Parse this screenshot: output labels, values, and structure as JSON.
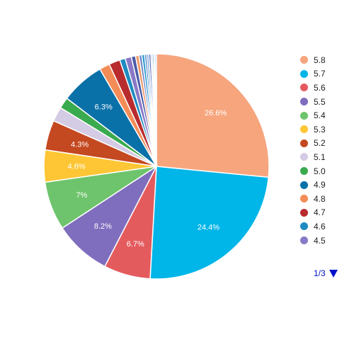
{
  "chart_data": {
    "type": "pie",
    "legend_position": "right",
    "slices": [
      {
        "label": "5.8",
        "value": 26.6,
        "display": "26.6%",
        "color": "#f6a57d"
      },
      {
        "label": "5.7",
        "value": 24.4,
        "display": "24.4%",
        "color": "#00b5e8"
      },
      {
        "label": "5.6",
        "value": 6.7,
        "display": "6.7%",
        "color": "#e45b5e"
      },
      {
        "label": "5.5",
        "value": 8.2,
        "display": "8.2%",
        "color": "#7f6dbe"
      },
      {
        "label": "5.4",
        "value": 7.0,
        "display": "7%",
        "color": "#6ec46c"
      },
      {
        "label": "5.3",
        "value": 4.6,
        "display": "4.6%",
        "color": "#fec634"
      },
      {
        "label": "5.2",
        "value": 4.3,
        "display": "4.3%",
        "color": "#c44921"
      },
      {
        "label": "5.1",
        "value": 2.1,
        "display": "",
        "color": "#d4cbe4"
      },
      {
        "label": "5.0",
        "value": 1.6,
        "display": "",
        "color": "#3aaa4e"
      },
      {
        "label": "4.9",
        "value": 6.3,
        "display": "6.3%",
        "color": "#0a70a8"
      },
      {
        "label": "4.8",
        "value": 1.5,
        "display": "",
        "color": "#f48c57"
      },
      {
        "label": "4.7",
        "value": 1.6,
        "display": "",
        "color": "#b82c2e"
      },
      {
        "label": "4.6",
        "value": 0.8,
        "display": "",
        "color": "#1e8cc0"
      },
      {
        "label": "4.5",
        "value": 0.9,
        "display": "",
        "color": "#8a79c6"
      },
      {
        "label": "",
        "value": 0.6,
        "display": "",
        "color": "#4a5ba8"
      },
      {
        "label": "",
        "value": 0.5,
        "display": "",
        "color": "#f09a6a"
      },
      {
        "label": "",
        "value": 0.4,
        "display": "",
        "color": "#6a86c6"
      },
      {
        "label": "",
        "value": 0.4,
        "display": "",
        "color": "#2a9ad0"
      },
      {
        "label": "",
        "value": 0.3,
        "display": "",
        "color": "#3f7fbf"
      },
      {
        "label": "",
        "value": 0.3,
        "display": "",
        "color": "#7a9ed8"
      },
      {
        "label": "",
        "value": 0.3,
        "display": "",
        "color": "#5a6eb8"
      },
      {
        "label": "",
        "value": 0.2,
        "display": "",
        "color": "#a0b8e0"
      },
      {
        "label": "",
        "value": 0.2,
        "display": "",
        "color": "#2e6fae"
      },
      {
        "label": "",
        "value": 0.2,
        "display": "",
        "color": "#c8d4ee"
      },
      {
        "label": "",
        "value": 0.2,
        "display": "",
        "color": "#6fa8d8"
      }
    ]
  },
  "legend": {
    "page_label": "1/3"
  }
}
